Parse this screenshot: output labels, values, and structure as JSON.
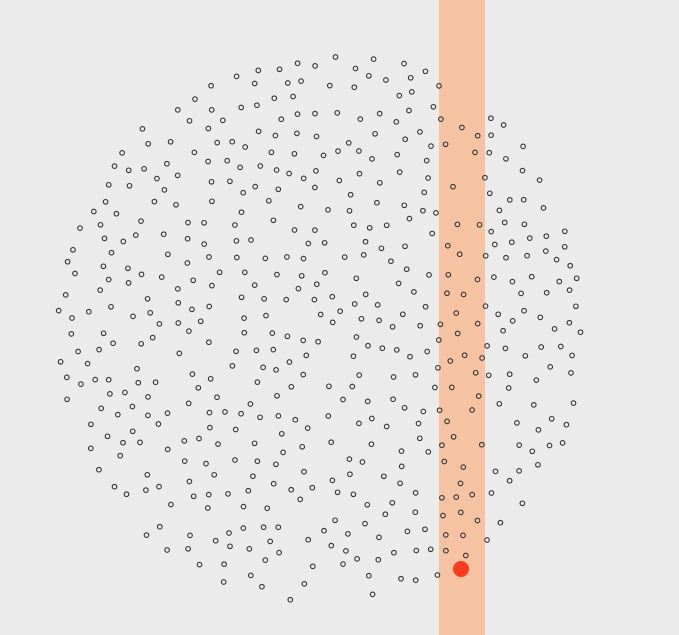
{
  "canvas": {
    "background": "#ebebeb"
  },
  "highlight_band": {
    "color": "#f5c3a1"
  },
  "points": {
    "stroke": "#333333",
    "fill": "none"
  },
  "cursor_dot": {
    "color": "#ff3b1f"
  }
}
